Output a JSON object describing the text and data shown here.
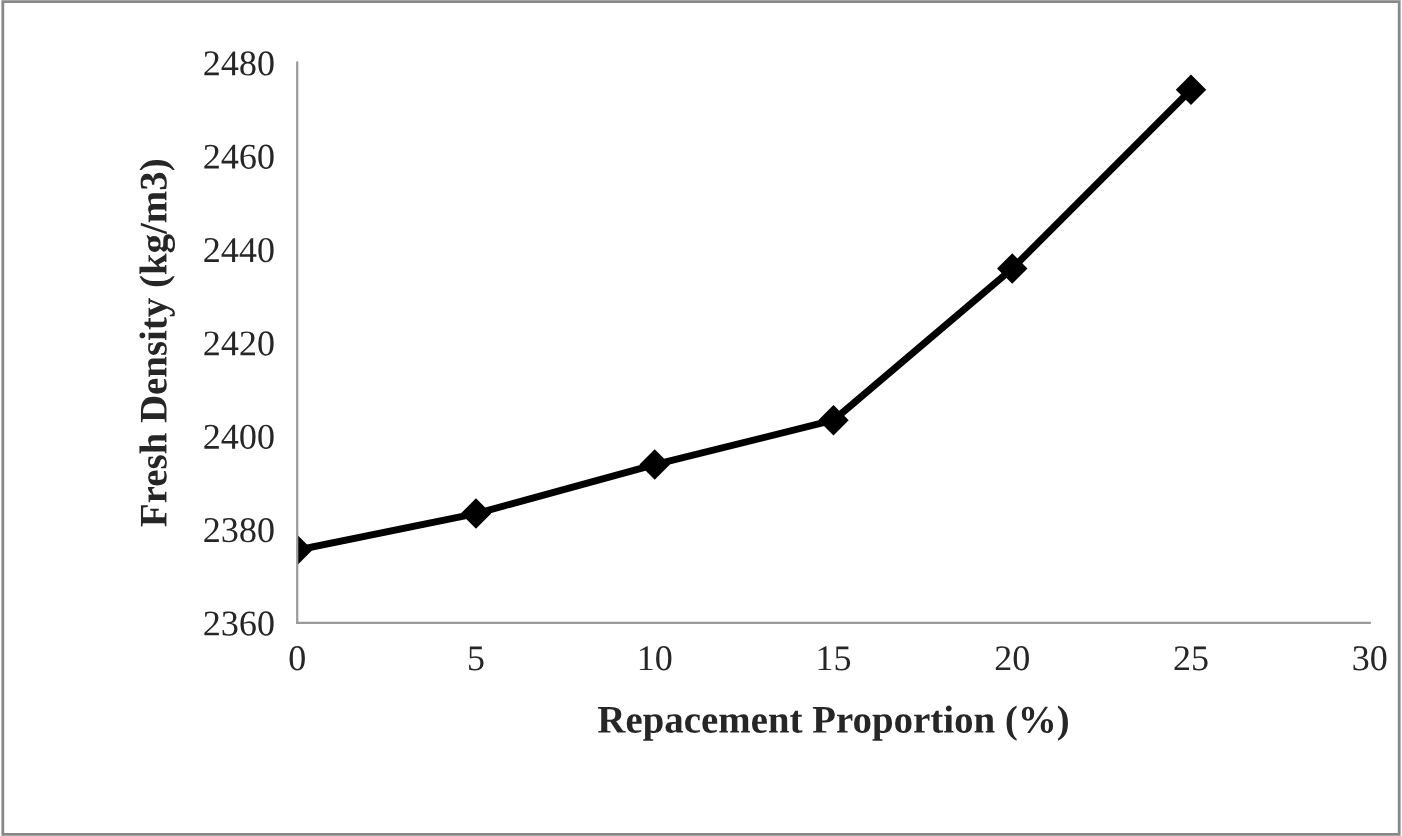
{
  "chart_data": {
    "type": "line",
    "xlabel": "Repacement Proportion (%)",
    "ylabel": "Fresh Density (kg/m3)",
    "x": [
      0,
      5,
      10,
      15,
      20,
      25
    ],
    "series": [
      {
        "color": "#000000",
        "values": [
          2375.6,
          2383.4,
          2393.9,
          2403.4,
          2435.9,
          2474.2
        ]
      }
    ],
    "xlim": [
      0,
      30
    ],
    "xticks": [
      0,
      5,
      10,
      15,
      20,
      25,
      30
    ],
    "ylim": [
      2360,
      2480
    ],
    "yticks": [
      2360,
      2380,
      2400,
      2420,
      2440,
      2460,
      2480
    ],
    "grid": false,
    "marker": "diamond",
    "line_style": "solid"
  }
}
